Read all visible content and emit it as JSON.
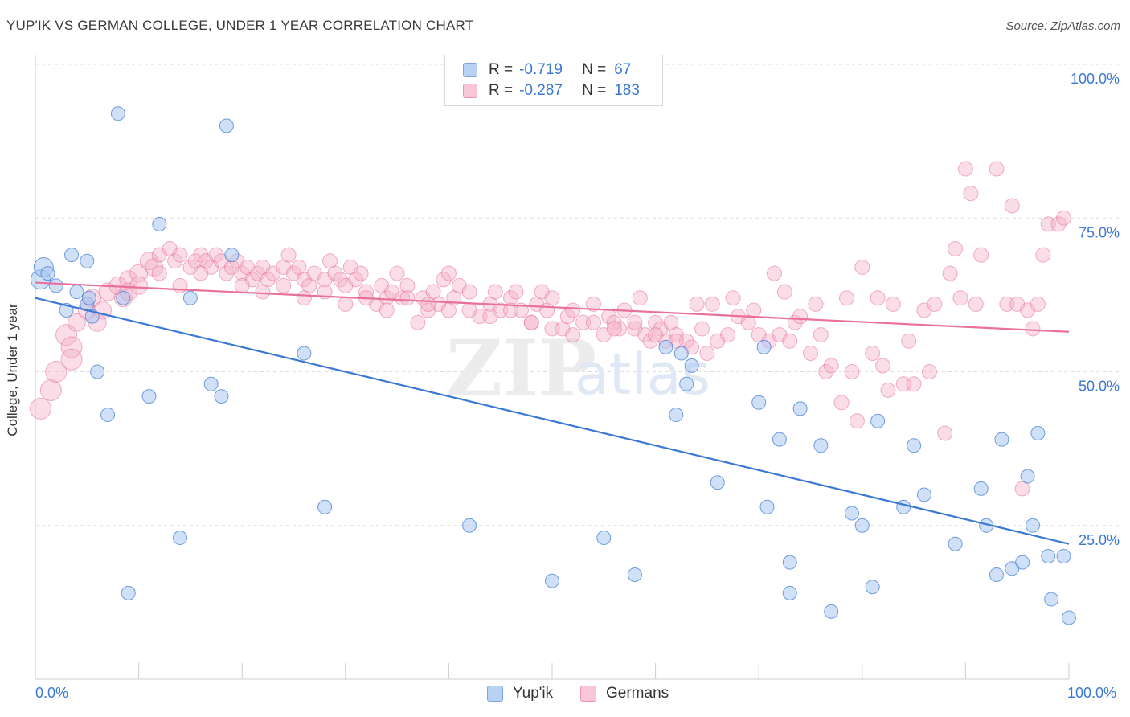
{
  "title": "YUP'IK VS GERMAN COLLEGE, UNDER 1 YEAR CORRELATION CHART",
  "source": "Source: ZipAtlas.com",
  "colors": {
    "blue": "#3a78d4",
    "blue_fill": "#a9c7f0",
    "pink": "#e8709a",
    "pink_fill": "#f5b3c8",
    "grid": "#dddddd"
  },
  "legend": {
    "rows": [
      {
        "r_label": "R =",
        "r_value": "-0.719",
        "n_label": "N =",
        "n_value": "67"
      },
      {
        "r_label": "R =",
        "r_value": "-0.287",
        "n_label": "N =",
        "n_value": "183"
      }
    ]
  },
  "bottom_legend": {
    "series1": "Yup'ik",
    "series2": "Germans"
  },
  "chart_data": {
    "type": "scatter",
    "ylabel": "College, Under 1 year",
    "xlabel": "",
    "xlim": [
      0,
      100
    ],
    "ylim": [
      0,
      100
    ],
    "x_tick_labels": [
      "0.0%",
      "100.0%"
    ],
    "y_tick_labels": [
      "25.0%",
      "50.0%",
      "75.0%",
      "100.0%"
    ],
    "y_ticks": [
      25,
      50,
      75,
      100
    ],
    "grid": true,
    "series": [
      {
        "name": "Yup'ik",
        "color": "#3a78d4",
        "trend": [
          [
            0,
            62
          ],
          [
            100,
            22
          ]
        ],
        "points": [
          [
            0.5,
            65
          ],
          [
            0.8,
            67
          ],
          [
            1.2,
            66
          ],
          [
            2,
            64
          ],
          [
            3,
            60
          ],
          [
            3.5,
            69
          ],
          [
            4,
            63
          ],
          [
            5,
            61
          ],
          [
            5.2,
            62
          ],
          [
            5.5,
            59
          ],
          [
            5,
            68
          ],
          [
            6,
            50
          ],
          [
            7,
            43
          ],
          [
            8,
            92
          ],
          [
            8.5,
            62
          ],
          [
            9,
            14
          ],
          [
            11,
            46
          ],
          [
            12,
            74
          ],
          [
            14,
            23
          ],
          [
            15,
            62
          ],
          [
            17,
            48
          ],
          [
            18,
            46
          ],
          [
            18.5,
            90
          ],
          [
            19,
            69
          ],
          [
            26,
            53
          ],
          [
            28,
            28
          ],
          [
            42,
            25
          ],
          [
            50,
            16
          ],
          [
            55,
            23
          ],
          [
            58,
            17
          ],
          [
            61,
            54
          ],
          [
            62,
            43
          ],
          [
            62.5,
            53
          ],
          [
            63,
            48
          ],
          [
            63.5,
            51
          ],
          [
            66,
            32
          ],
          [
            70,
            45
          ],
          [
            70.5,
            54
          ],
          [
            70.8,
            28
          ],
          [
            72,
            39
          ],
          [
            73,
            19
          ],
          [
            73,
            14
          ],
          [
            74,
            44
          ],
          [
            76,
            38
          ],
          [
            77,
            11
          ],
          [
            79,
            27
          ],
          [
            80,
            25
          ],
          [
            81,
            15
          ],
          [
            81.5,
            42
          ],
          [
            84,
            28
          ],
          [
            85,
            38
          ],
          [
            86,
            30
          ],
          [
            89,
            22
          ],
          [
            91.5,
            31
          ],
          [
            92,
            25
          ],
          [
            93,
            17
          ],
          [
            93.5,
            39
          ],
          [
            94.5,
            18
          ],
          [
            95.5,
            19
          ],
          [
            96,
            33
          ],
          [
            96.5,
            25
          ],
          [
            97,
            40
          ],
          [
            98,
            20
          ],
          [
            98.3,
            13
          ],
          [
            99.5,
            20
          ],
          [
            100,
            10
          ]
        ]
      },
      {
        "name": "Germans",
        "color": "#e8709a",
        "trend": [
          [
            0,
            64.5
          ],
          [
            100,
            56.5
          ]
        ],
        "points": [
          [
            0.5,
            44
          ],
          [
            1.5,
            47
          ],
          [
            2,
            50
          ],
          [
            3,
            56
          ],
          [
            3.5,
            54
          ],
          [
            4,
            58
          ],
          [
            5,
            60
          ],
          [
            5.5,
            62
          ],
          [
            6.5,
            60
          ],
          [
            7,
            63
          ],
          [
            8,
            64
          ],
          [
            8.5,
            62
          ],
          [
            9,
            65
          ],
          [
            10,
            66
          ],
          [
            11,
            68
          ],
          [
            11.5,
            67
          ],
          [
            12,
            69
          ],
          [
            13,
            70
          ],
          [
            13.5,
            68
          ],
          [
            14,
            69
          ],
          [
            15,
            67
          ],
          [
            15.5,
            68
          ],
          [
            16,
            69
          ],
          [
            16.5,
            68
          ],
          [
            17,
            67
          ],
          [
            17.5,
            69
          ],
          [
            18,
            68
          ],
          [
            18.5,
            66
          ],
          [
            19,
            67
          ],
          [
            19.5,
            68
          ],
          [
            20,
            66
          ],
          [
            20.5,
            67
          ],
          [
            21,
            65
          ],
          [
            21.5,
            66
          ],
          [
            22,
            67
          ],
          [
            22.5,
            65
          ],
          [
            23,
            66
          ],
          [
            24,
            67
          ],
          [
            24.5,
            69
          ],
          [
            25,
            66
          ],
          [
            25.5,
            67
          ],
          [
            26,
            65
          ],
          [
            26.5,
            64
          ],
          [
            27,
            66
          ],
          [
            28,
            65
          ],
          [
            28.5,
            68
          ],
          [
            29,
            66
          ],
          [
            29.5,
            65
          ],
          [
            30,
            64
          ],
          [
            30.5,
            67
          ],
          [
            31,
            65
          ],
          [
            31.5,
            66
          ],
          [
            32,
            63
          ],
          [
            33,
            61
          ],
          [
            33.5,
            64
          ],
          [
            34,
            62
          ],
          [
            34.5,
            63
          ],
          [
            35,
            66
          ],
          [
            35.5,
            62
          ],
          [
            36,
            64
          ],
          [
            37,
            58
          ],
          [
            37.5,
            62
          ],
          [
            38,
            60
          ],
          [
            38.5,
            63
          ],
          [
            39,
            61
          ],
          [
            39.5,
            65
          ],
          [
            40,
            66
          ],
          [
            40.5,
            62
          ],
          [
            41,
            64
          ],
          [
            42,
            63
          ],
          [
            43,
            59
          ],
          [
            44,
            61
          ],
          [
            44.5,
            63
          ],
          [
            45,
            60
          ],
          [
            46,
            62
          ],
          [
            46.5,
            63
          ],
          [
            47,
            60
          ],
          [
            48,
            58
          ],
          [
            48.5,
            61
          ],
          [
            49,
            63
          ],
          [
            49.5,
            60
          ],
          [
            50,
            62
          ],
          [
            51,
            57
          ],
          [
            51.5,
            59
          ],
          [
            52,
            60
          ],
          [
            53,
            58
          ],
          [
            54,
            61
          ],
          [
            55,
            56
          ],
          [
            55.5,
            59
          ],
          [
            56,
            58
          ],
          [
            56.5,
            57
          ],
          [
            57,
            60
          ],
          [
            58,
            57
          ],
          [
            58.5,
            62
          ],
          [
            59,
            56
          ],
          [
            59.5,
            55
          ],
          [
            60,
            58
          ],
          [
            60.5,
            57
          ],
          [
            61,
            55
          ],
          [
            61.5,
            58
          ],
          [
            62,
            56
          ],
          [
            63,
            55
          ],
          [
            63.5,
            54
          ],
          [
            64,
            61
          ],
          [
            64.5,
            57
          ],
          [
            65,
            53
          ],
          [
            65.5,
            61
          ],
          [
            66,
            55
          ],
          [
            67,
            56
          ],
          [
            67.5,
            62
          ],
          [
            68,
            59
          ],
          [
            69,
            58
          ],
          [
            69.5,
            60
          ],
          [
            70,
            56
          ],
          [
            71,
            55
          ],
          [
            71.5,
            66
          ],
          [
            72,
            56
          ],
          [
            72.5,
            63
          ],
          [
            73,
            55
          ],
          [
            73.5,
            58
          ],
          [
            74,
            59
          ],
          [
            75,
            53
          ],
          [
            75.5,
            61
          ],
          [
            76,
            56
          ],
          [
            76.5,
            50
          ],
          [
            77,
            51
          ],
          [
            78,
            45
          ],
          [
            78.5,
            62
          ],
          [
            79,
            50
          ],
          [
            79.5,
            42
          ],
          [
            80,
            67
          ],
          [
            81,
            53
          ],
          [
            81.5,
            62
          ],
          [
            82,
            51
          ],
          [
            82.5,
            47
          ],
          [
            83,
            61
          ],
          [
            84,
            48
          ],
          [
            84.5,
            55
          ],
          [
            85,
            48
          ],
          [
            86,
            60
          ],
          [
            86.5,
            50
          ],
          [
            87,
            61
          ],
          [
            88,
            40
          ],
          [
            88.5,
            66
          ],
          [
            89,
            70
          ],
          [
            89.5,
            62
          ],
          [
            90,
            83
          ],
          [
            90.5,
            79
          ],
          [
            91,
            61
          ],
          [
            91.5,
            69
          ],
          [
            93,
            83
          ],
          [
            94,
            61
          ],
          [
            94.5,
            77
          ],
          [
            95,
            61
          ],
          [
            95.5,
            31
          ],
          [
            96,
            60
          ],
          [
            96.5,
            57
          ],
          [
            97,
            61
          ],
          [
            97.5,
            69
          ],
          [
            98,
            74
          ],
          [
            99,
            74
          ],
          [
            99.5,
            75
          ],
          [
            3.5,
            52
          ],
          [
            6,
            58
          ],
          [
            9,
            63
          ],
          [
            10,
            64
          ],
          [
            12,
            66
          ],
          [
            14,
            64
          ],
          [
            16,
            66
          ],
          [
            20,
            64
          ],
          [
            22,
            63
          ],
          [
            24,
            64
          ],
          [
            26,
            62
          ],
          [
            28,
            63
          ],
          [
            30,
            61
          ],
          [
            32,
            62
          ],
          [
            34,
            60
          ],
          [
            36,
            62
          ],
          [
            38,
            61
          ],
          [
            40,
            60
          ],
          [
            42,
            60
          ],
          [
            44,
            59
          ],
          [
            46,
            60
          ],
          [
            48,
            58
          ],
          [
            50,
            57
          ],
          [
            52,
            56
          ],
          [
            54,
            58
          ],
          [
            56,
            57
          ],
          [
            58,
            58
          ],
          [
            60,
            56
          ],
          [
            62,
            55
          ]
        ]
      }
    ]
  }
}
